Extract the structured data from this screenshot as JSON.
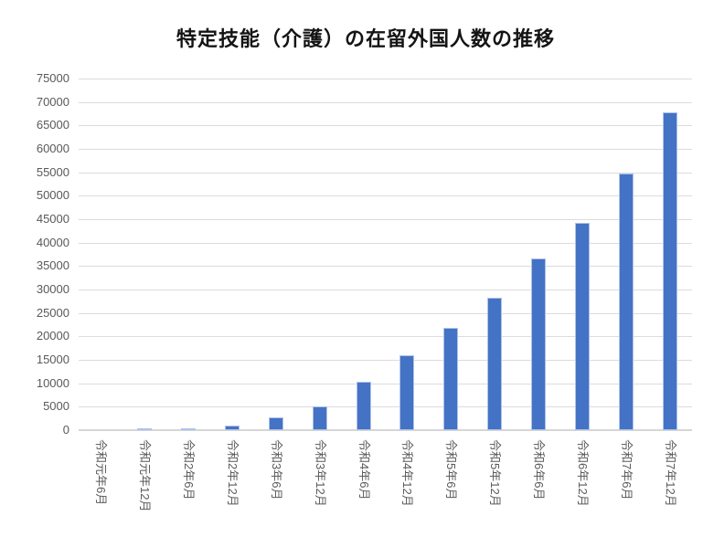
{
  "chart_data": {
    "type": "bar",
    "title": "特定技能（介護）の在留外国人数の推移",
    "xlabel": "",
    "ylabel": "",
    "categories": [
      "令和元年6月",
      "令和元年12月",
      "令和2年6月",
      "令和2年12月",
      "令和3年6月",
      "令和3年12月",
      "令和4年6月",
      "令和4年12月",
      "令和5年6月",
      "令和5年12月",
      "令和6年6月",
      "令和6年12月",
      "令和7年6月",
      "令和7年12月"
    ],
    "values": [
      20,
      400,
      400,
      900,
      2700,
      5000,
      10300,
      16000,
      21900,
      28300,
      36700,
      44300,
      54800,
      67800
    ],
    "ylim": [
      0,
      75000
    ],
    "ytick_interval": 5000,
    "yticks": [
      "0",
      "5000",
      "10000",
      "15000",
      "20000",
      "25000",
      "30000",
      "35000",
      "40000",
      "45000",
      "50000",
      "55000",
      "60000",
      "65000",
      "70000",
      "75000"
    ],
    "grid": "horizontal",
    "legend_position": "none",
    "x_label_rotation": "vertical-rotated-90deg-clockwise",
    "colors": {
      "bar_fill": "#4472C4",
      "bar_edge": "#AEC3E9",
      "gridline": "#DCDCDC",
      "axis_line": "#D6D6D6",
      "tick_label": "#595959",
      "title": "#141414",
      "background": "#FFFFFF"
    }
  }
}
